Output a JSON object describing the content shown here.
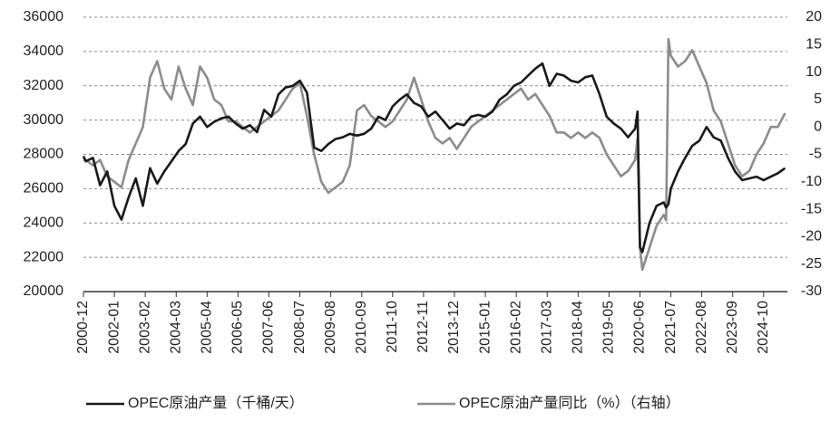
{
  "chart_data": {
    "type": "line",
    "x": [
      2000.917,
      2001,
      2001.25,
      2001.5,
      2001.75,
      2002,
      2002.25,
      2002.5,
      2002.75,
      2003,
      2003.25,
      2003.5,
      2003.75,
      2004,
      2004.25,
      2004.5,
      2004.75,
      2005,
      2005.25,
      2005.5,
      2005.75,
      2006,
      2006.25,
      2006.5,
      2006.75,
      2007,
      2007.25,
      2007.5,
      2007.75,
      2008,
      2008.25,
      2008.5,
      2008.75,
      2009,
      2009.25,
      2009.5,
      2009.75,
      2010,
      2010.25,
      2010.5,
      2010.75,
      2011,
      2011.25,
      2011.5,
      2011.75,
      2012,
      2012.25,
      2012.5,
      2012.75,
      2013,
      2013.25,
      2013.5,
      2013.75,
      2014,
      2014.25,
      2014.5,
      2014.75,
      2015,
      2015.25,
      2015.5,
      2015.75,
      2016,
      2016.25,
      2016.5,
      2016.75,
      2017,
      2017.25,
      2017.5,
      2017.75,
      2018,
      2018.25,
      2018.5,
      2018.75,
      2019,
      2019.25,
      2019.5,
      2019.75,
      2020,
      2020.25,
      2020.333,
      2020.417,
      2020.5,
      2020.75,
      2021,
      2021.25,
      2021.333,
      2021.417,
      2021.5,
      2021.75,
      2022,
      2022.25,
      2022.5,
      2022.75,
      2023,
      2023.25,
      2023.5,
      2023.75,
      2024,
      2024.25,
      2024.5,
      2024.75,
      2025,
      2025.25,
      2025.5
    ],
    "series": [
      {
        "name": "OPEC原油产量（千桶/天）",
        "color": "#1a1a1a",
        "axis": "y",
        "values": [
          27900,
          27600,
          27800,
          26200,
          27000,
          25000,
          24200,
          25500,
          26600,
          25000,
          27200,
          26300,
          27000,
          27600,
          28200,
          28600,
          29800,
          30200,
          29600,
          29900,
          30100,
          30200,
          29800,
          29500,
          29700,
          29300,
          30600,
          30200,
          31500,
          31900,
          32000,
          32300,
          31600,
          28400,
          28200,
          28600,
          28900,
          29000,
          29200,
          29100,
          29200,
          29500,
          30200,
          30000,
          30800,
          31200,
          31500,
          31000,
          30800,
          30200,
          30500,
          30000,
          29500,
          29800,
          29700,
          30200,
          30300,
          30200,
          30500,
          31200,
          31500,
          32000,
          32200,
          32600,
          33000,
          33300,
          32000,
          32700,
          32600,
          32300,
          32200,
          32500,
          32600,
          31500,
          30200,
          29800,
          29500,
          29000,
          29500,
          30500,
          22600,
          22300,
          24000,
          25000,
          25200,
          24900,
          25100,
          26000,
          27000,
          27800,
          28500,
          28800,
          29600,
          29000,
          28800,
          27800,
          27000,
          26500,
          26600,
          26700,
          26500,
          26700,
          26900,
          27200
        ]
      },
      {
        "name": "OPEC原油产量同比（%）（右轴）",
        "color": "#8c8c8c",
        "axis": "y2",
        "values": [
          -6,
          -6,
          -7,
          -6,
          -9,
          -10,
          -11,
          -6,
          -3,
          0,
          9,
          12,
          7,
          5,
          11,
          7,
          4,
          11,
          9,
          5,
          4,
          1,
          1,
          0,
          -1,
          0,
          1,
          2,
          3,
          5,
          7,
          8,
          2,
          -5,
          -10,
          -12,
          -11,
          -10,
          -7,
          3,
          4,
          2,
          1,
          0,
          1,
          3,
          5,
          9,
          5,
          1,
          -2,
          -3,
          -2,
          -4,
          -2,
          0,
          1,
          2,
          3,
          4,
          5,
          6,
          7,
          5,
          6,
          4,
          2,
          -1,
          -1,
          -2,
          -1,
          -2,
          -1,
          -2,
          -5,
          -7,
          -9,
          -8,
          -6,
          -2,
          -22,
          -26,
          -22,
          -18,
          -16,
          -17,
          16,
          13,
          11,
          12,
          14,
          11,
          8,
          3,
          1,
          -3,
          -7,
          -9,
          -8,
          -5,
          -3,
          0,
          0,
          2.5
        ]
      }
    ],
    "xlim": [
      2000.917,
      2025.583
    ],
    "xticks": [
      {
        "value": 2000.917,
        "label": "2000-12"
      },
      {
        "value": 2002,
        "label": "2002-01"
      },
      {
        "value": 2003.083,
        "label": "2003-02"
      },
      {
        "value": 2004.167,
        "label": "2004-03"
      },
      {
        "value": 2005.25,
        "label": "2005-04"
      },
      {
        "value": 2006.333,
        "label": "2006-05"
      },
      {
        "value": 2007.417,
        "label": "2007-06"
      },
      {
        "value": 2008.5,
        "label": "2008-07"
      },
      {
        "value": 2009.583,
        "label": "2009-08"
      },
      {
        "value": 2010.667,
        "label": "2010-09"
      },
      {
        "value": 2011.75,
        "label": "2011-10"
      },
      {
        "value": 2012.833,
        "label": "2012-11"
      },
      {
        "value": 2013.917,
        "label": "2013-12"
      },
      {
        "value": 2015,
        "label": "2015-01"
      },
      {
        "value": 2016.083,
        "label": "2016-02"
      },
      {
        "value": 2017.167,
        "label": "2017-03"
      },
      {
        "value": 2018.25,
        "label": "2018-04"
      },
      {
        "value": 2019.333,
        "label": "2019-05"
      },
      {
        "value": 2020.417,
        "label": "2020-06"
      },
      {
        "value": 2021.5,
        "label": "2021-07"
      },
      {
        "value": 2022.583,
        "label": "2022-08"
      },
      {
        "value": 2023.667,
        "label": "2023-09"
      },
      {
        "value": 2024.75,
        "label": "2024-10"
      }
    ],
    "ylim": [
      20000,
      36000
    ],
    "yticks": [
      20000,
      22000,
      24000,
      26000,
      28000,
      30000,
      32000,
      34000,
      36000
    ],
    "y2lim": [
      -30,
      20
    ],
    "y2ticks": [
      -30,
      -25,
      -20,
      -15,
      -10,
      -5,
      0,
      5,
      10,
      15,
      20
    ],
    "grid": true,
    "legend": "bottom"
  }
}
